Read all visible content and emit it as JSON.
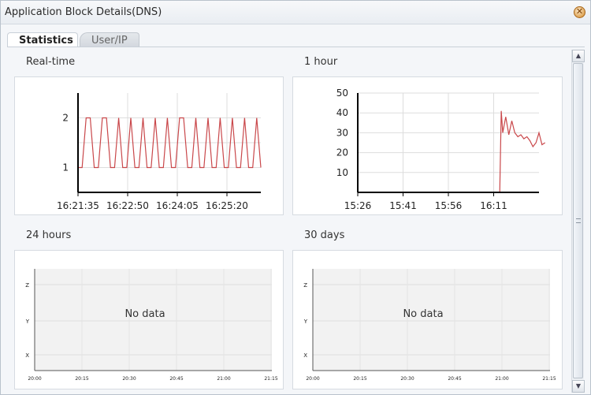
{
  "window": {
    "title": "Application Block Details(DNS)"
  },
  "tabs": [
    {
      "label": "Statistics",
      "active": true
    },
    {
      "label": "User/IP",
      "active": false
    }
  ],
  "panels": {
    "realtime": {
      "label": "Real-time"
    },
    "hour": {
      "label": "1 hour"
    },
    "day": {
      "label": "24 hours",
      "no_data": "No data"
    },
    "month": {
      "label": "30 days",
      "no_data": "No data"
    }
  },
  "colors": {
    "series": "#c9474a",
    "axis": "#000000",
    "grid": "#dddddd",
    "plot_bg_empty": "#f2f2f2"
  },
  "chart_data": [
    {
      "type": "line",
      "title": "Real-time",
      "x_ticks": [
        "16:21:35",
        "16:22:50",
        "16:24:05",
        "16:25:20"
      ],
      "y_ticks": [
        "1",
        "2"
      ],
      "ylim": [
        0.5,
        2.5
      ],
      "series": [
        {
          "values": [
            1,
            1,
            2,
            2,
            1,
            1,
            2,
            2,
            1,
            1,
            2,
            1,
            1,
            2,
            1,
            1,
            2,
            1,
            1,
            2,
            1,
            1,
            2,
            1,
            1,
            2,
            2,
            1,
            1,
            2,
            1,
            1,
            2,
            1,
            1,
            2,
            1,
            1,
            2,
            1,
            1,
            2,
            1,
            1,
            2,
            1
          ]
        }
      ],
      "grid": true
    },
    {
      "type": "line",
      "title": "1 hour",
      "x_ticks": [
        "15:26",
        "15:41",
        "15:56",
        "16:11"
      ],
      "y_ticks": [
        "10",
        "20",
        "30",
        "40",
        "50"
      ],
      "ylim": [
        0,
        50
      ],
      "series": [
        {
          "x": [
            "15:26",
            "15:41",
            "15:56",
            "16:11",
            "16:13",
            "16:13.5",
            "16:14",
            "16:15",
            "16:16",
            "16:17",
            "16:18",
            "16:19",
            "16:20",
            "16:21",
            "16:22",
            "16:23",
            "16:24",
            "16:25",
            "16:26",
            "16:27",
            "16:28"
          ],
          "values": [
            0,
            0,
            0,
            0,
            0,
            41,
            30,
            38,
            29,
            36,
            30,
            28,
            29,
            27,
            28,
            26,
            23,
            25,
            30,
            24,
            25
          ]
        }
      ],
      "grid": true
    },
    {
      "type": "line",
      "title": "24 hours",
      "x_ticks": [
        "20:00",
        "20:15",
        "20:30",
        "20:45",
        "21:00",
        "21:15"
      ],
      "y_ticks": [
        "X",
        "Y",
        "Z"
      ],
      "series": [],
      "annotation": "No data",
      "grid": true
    },
    {
      "type": "line",
      "title": "30 days",
      "x_ticks": [
        "20:00",
        "20:15",
        "20:30",
        "20:45",
        "21:00",
        "21:15"
      ],
      "y_ticks": [
        "X",
        "Y",
        "Z"
      ],
      "series": [],
      "annotation": "No data",
      "grid": true
    }
  ]
}
